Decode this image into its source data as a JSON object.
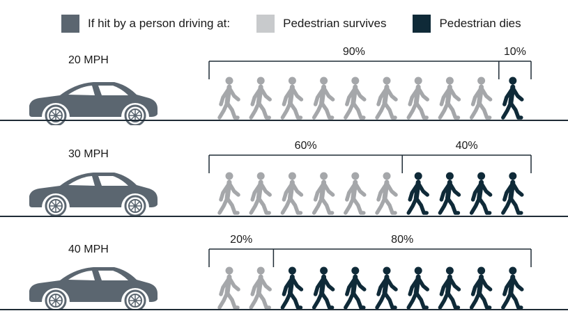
{
  "legend": {
    "items": [
      {
        "label": "If hit by a person driving at:",
        "color": "#5b6670"
      },
      {
        "label": "Pedestrian survives",
        "color": "#c8cacc"
      },
      {
        "label": "Pedestrian dies",
        "color": "#0f2a38"
      }
    ]
  },
  "colors": {
    "car": "#5b6670",
    "survives_figure": "#a5a7aa",
    "dies_figure": "#0f2a38",
    "bracket": "#1e2b35",
    "ground": "#1e2b35"
  },
  "icons": {
    "car": "car-icon",
    "pedestrian": "walking-person-icon"
  },
  "chart_data": {
    "type": "pictograph",
    "figures_per_row": 10,
    "rows": [
      {
        "label": "20 MPH",
        "survives": 9,
        "dies": 1,
        "survives_label": "90%",
        "dies_label": "10%"
      },
      {
        "label": "30 MPH",
        "survives": 6,
        "dies": 4,
        "survives_label": "60%",
        "dies_label": "40%"
      },
      {
        "label": "40 MPH",
        "survives": 2,
        "dies": 8,
        "survives_label": "20%",
        "dies_label": "80%"
      }
    ]
  }
}
